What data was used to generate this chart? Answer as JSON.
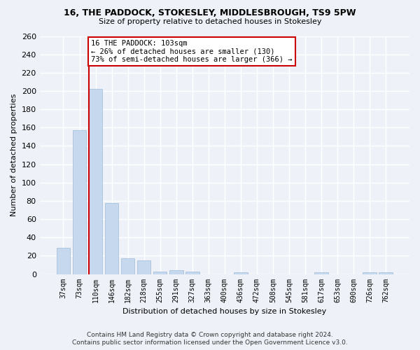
{
  "title": "16, THE PADDOCK, STOKESLEY, MIDDLESBROUGH, TS9 5PW",
  "subtitle": "Size of property relative to detached houses in Stokesley",
  "xlabel": "Distribution of detached houses by size in Stokesley",
  "ylabel": "Number of detached properties",
  "categories": [
    "37sqm",
    "73sqm",
    "110sqm",
    "146sqm",
    "182sqm",
    "218sqm",
    "255sqm",
    "291sqm",
    "327sqm",
    "363sqm",
    "400sqm",
    "436sqm",
    "472sqm",
    "508sqm",
    "545sqm",
    "581sqm",
    "617sqm",
    "653sqm",
    "690sqm",
    "726sqm",
    "762sqm"
  ],
  "values": [
    29,
    157,
    202,
    78,
    17,
    15,
    3,
    4,
    3,
    0,
    0,
    2,
    0,
    0,
    0,
    0,
    2,
    0,
    0,
    2,
    2
  ],
  "bar_color": "#c5d8ed",
  "bar_edge_color": "#9dbcd8",
  "highlight_line_index": 2,
  "highlight_line_color": "#cc0000",
  "annotation_line1": "16 THE PADDOCK: 103sqm",
  "annotation_line2": "← 26% of detached houses are smaller (130)",
  "annotation_line3": "73% of semi-detached houses are larger (366) →",
  "annotation_box_color": "#ffffff",
  "annotation_box_edge_color": "#cc0000",
  "ylim": [
    0,
    260
  ],
  "yticks": [
    0,
    20,
    40,
    60,
    80,
    100,
    120,
    140,
    160,
    180,
    200,
    220,
    240,
    260
  ],
  "background_color": "#eef2f8",
  "grid_color": "#ffffff",
  "footer_line1": "Contains HM Land Registry data © Crown copyright and database right 2024.",
  "footer_line2": "Contains public sector information licensed under the Open Government Licence v3.0."
}
